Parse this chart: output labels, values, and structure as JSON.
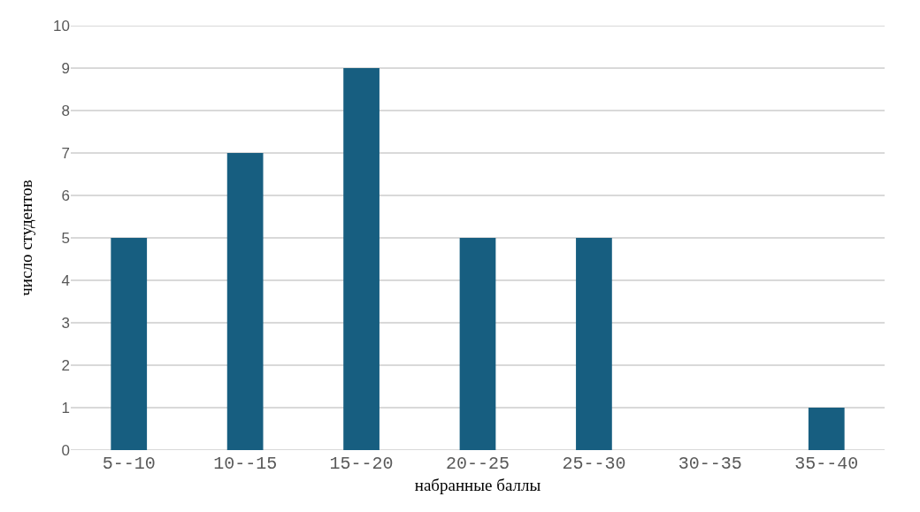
{
  "chart_data": {
    "type": "bar",
    "xlabel": "набранные баллы",
    "ylabel": "число студентов",
    "categories": [
      "5--10",
      "10--15",
      "15--20",
      "20--25",
      "25--30",
      "30--35",
      "35--40"
    ],
    "values": [
      5,
      7,
      9,
      5,
      5,
      0,
      1
    ],
    "color": "#175e80",
    "ylim": [
      0,
      10
    ],
    "yticks": [
      0,
      1,
      2,
      3,
      4,
      5,
      6,
      7,
      8,
      9,
      10
    ],
    "grid": "y"
  }
}
